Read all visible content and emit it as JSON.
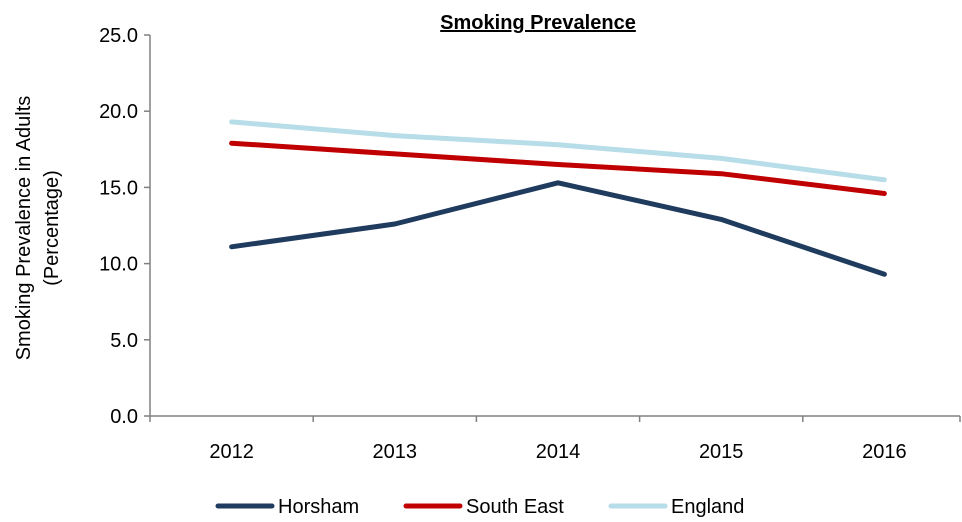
{
  "chart_data": {
    "type": "line",
    "title": "Smoking Prevalence",
    "ylabel_lines": [
      "Smoking Prevalence in Adults",
      "(Percentage)"
    ],
    "xlabel": "",
    "categories": [
      "2012",
      "2013",
      "2014",
      "2015",
      "2016"
    ],
    "ylim": [
      0,
      25
    ],
    "yticks": [
      0,
      5,
      10,
      15,
      20,
      25
    ],
    "ytick_labels": [
      "0.0",
      "5.0",
      "10.0",
      "15.0",
      "20.0",
      "25.0"
    ],
    "grid": false,
    "legend_position": "bottom",
    "series": [
      {
        "name": "Horsham",
        "color": "#1f3b5e",
        "values": [
          11.1,
          12.6,
          15.3,
          12.9,
          9.3
        ]
      },
      {
        "name": "South East",
        "color": "#c00000",
        "values": [
          17.9,
          17.2,
          16.5,
          15.9,
          14.6
        ]
      },
      {
        "name": "England",
        "color": "#b7dde8",
        "values": [
          19.3,
          18.4,
          17.8,
          16.9,
          15.5
        ]
      }
    ]
  }
}
